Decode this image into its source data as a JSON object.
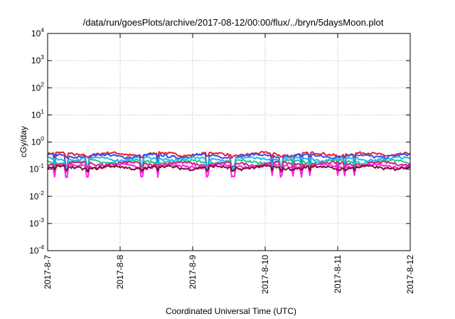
{
  "chart_data": {
    "type": "line",
    "title": "/data/run/goesPlots/archive/2017-08-12/00:00/flux/../bryn/5daysMoon.plot",
    "xlabel": "Coordinated Universal Time (UTC)",
    "ylabel": "cGy/day",
    "y_scale": "log",
    "ylim": [
      0.0001,
      10000
    ],
    "y_ticks": [
      {
        "base": "10",
        "exp": "-4",
        "value": 0.0001
      },
      {
        "base": "10",
        "exp": "-3",
        "value": 0.001
      },
      {
        "base": "10",
        "exp": "-2",
        "value": 0.01
      },
      {
        "base": "10",
        "exp": "-1",
        "value": 0.1
      },
      {
        "base": "10",
        "exp": "0",
        "value": 1
      },
      {
        "base": "10",
        "exp": "1",
        "value": 10
      },
      {
        "base": "10",
        "exp": "2",
        "value": 100
      },
      {
        "base": "10",
        "exp": "3",
        "value": 1000
      },
      {
        "base": "10",
        "exp": "4",
        "value": 10000
      }
    ],
    "xlim": [
      "2017-08-07",
      "2017-08-12"
    ],
    "x_ticks": [
      "2017-8-7",
      "2017-8-8",
      "2017-8-9",
      "2017-8-10",
      "2017-8-11",
      "2017-8-12"
    ],
    "grid": true,
    "legend": "none",
    "series": [
      {
        "color": "#e8202a",
        "level": 0.36,
        "dip_floor": 0.28
      },
      {
        "color": "#3a4de8",
        "level": 0.31,
        "dip_floor": 0.12
      },
      {
        "color": "#20b8f0",
        "level": 0.24,
        "dip_floor": 0.1
      },
      {
        "color": "#22c98a",
        "level": 0.19,
        "dip_floor": 0.09
      },
      {
        "color": "#d81f8a",
        "level": 0.16,
        "dip_floor": 0.08
      },
      {
        "color": "#ff20f0",
        "level": 0.13,
        "dip_floor": 0.055
      },
      {
        "color": "#7a1030",
        "level": 0.115,
        "dip_floor": 0.09
      }
    ],
    "dip_days": [
      0.1,
      0.26,
      0.55,
      1.3,
      1.52,
      2.2,
      2.55,
      2.58,
      3.1,
      3.22,
      3.38,
      3.5,
      3.62,
      4.0,
      4.1,
      4.23
    ]
  }
}
